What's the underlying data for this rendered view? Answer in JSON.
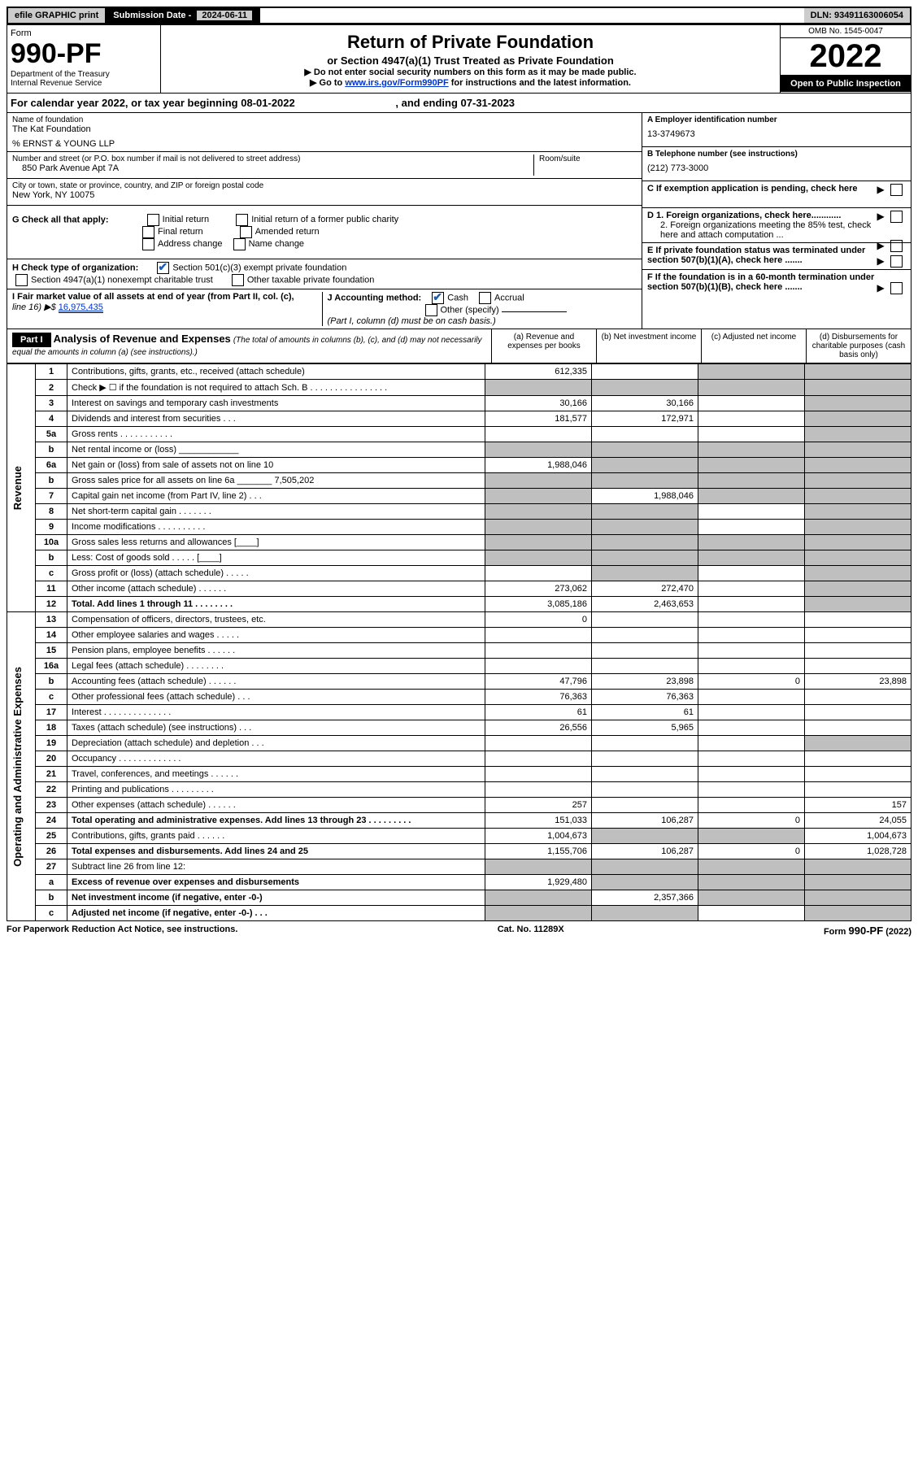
{
  "top": {
    "efile": "efile GRAPHIC print",
    "sub_label": "Submission Date - ",
    "sub_date": "2024-06-11",
    "dln_label": "DLN: ",
    "dln": "93491163006054"
  },
  "header": {
    "form_word": "Form",
    "form_number": "990-PF",
    "dept1": "Department of the Treasury",
    "dept2": "Internal Revenue Service",
    "title": "Return of Private Foundation",
    "subtitle": "or Section 4947(a)(1) Trust Treated as Private Foundation",
    "note1": "▶ Do not enter social security numbers on this form as it may be made public.",
    "note2_pre": "▶ Go to ",
    "note2_link": "www.irs.gov/Form990PF",
    "note2_post": " for instructions and the latest information.",
    "omb": "OMB No. 1545-0047",
    "year": "2022",
    "inspection": "Open to Public Inspection"
  },
  "cal": {
    "text_pre": "For calendar year 2022, or tax year beginning ",
    "begin": "08-01-2022",
    "text_mid": " , and ending ",
    "end": "07-31-2023"
  },
  "info": {
    "name_label": "Name of foundation",
    "name": "The Kat Foundation",
    "care_of": "% ERNST & YOUNG LLP",
    "addr_label": "Number and street (or P.O. box number if mail is not delivered to street address)",
    "addr": "850 Park Avenue Apt 7A",
    "room_label": "Room/suite",
    "room": "",
    "city_label": "City or town, state or province, country, and ZIP or foreign postal code",
    "city": "New York, NY  10075",
    "a_label": "A Employer identification number",
    "a_val": "13-3749673",
    "b_label": "B Telephone number (see instructions)",
    "b_val": "(212) 773-3000",
    "c_label": "C If exemption application is pending, check here",
    "d1_label": "D 1. Foreign organizations, check here............",
    "d2_label": "2. Foreign organizations meeting the 85% test, check here and attach computation ...",
    "e_label": "E  If private foundation status was terminated under section 507(b)(1)(A), check here .......",
    "f_label": "F  If the foundation is in a 60-month termination under section 507(b)(1)(B), check here .......",
    "g_label": "G Check all that apply:",
    "g_opts": [
      "Initial return",
      "Initial return of a former public charity",
      "Final return",
      "Amended return",
      "Address change",
      "Name change"
    ],
    "h_label": "H Check type of organization:",
    "h1": "Section 501(c)(3) exempt private foundation",
    "h2": "Section 4947(a)(1) nonexempt charitable trust",
    "h3": "Other taxable private foundation",
    "i_label": "I Fair market value of all assets at end of year (from Part II, col. (c), ",
    "i_line": "line 16) ▶$ ",
    "i_val": "16,975,435",
    "j_label": "J Accounting method:",
    "j_cash": "Cash",
    "j_accrual": "Accrual",
    "j_other": "Other (specify)",
    "j_note": "(Part I, column (d) must be on cash basis.)"
  },
  "part1": {
    "label": "Part I",
    "title": "Analysis of Revenue and Expenses",
    "note": " (The total of amounts in columns (b), (c), and (d) may not necessarily equal the amounts in column (a) (see instructions).)",
    "col_a": "(a)   Revenue and expenses per books",
    "col_b": "(b)   Net investment income",
    "col_c": "(c)   Adjusted net income",
    "col_d": "(d)   Disbursements for charitable purposes (cash basis only)"
  },
  "sections": {
    "revenue": "Revenue",
    "expenses": "Operating and Administrative Expenses"
  },
  "rows": [
    {
      "n": "1",
      "label": "Contributions, gifts, grants, etc., received (attach schedule)",
      "a": "612,335",
      "b": "",
      "c": "g",
      "d": "g"
    },
    {
      "n": "2",
      "label": "Check ▶ ☐ if the foundation is not required to attach Sch. B  .  .  .  .  .  .  .  .  .  .  .  .  .  .  .  .",
      "a": "g",
      "b": "g",
      "c": "g",
      "d": "g"
    },
    {
      "n": "3",
      "label": "Interest on savings and temporary cash investments",
      "a": "30,166",
      "b": "30,166",
      "c": "",
      "d": "g"
    },
    {
      "n": "4",
      "label": "Dividends and interest from securities   .   .   .",
      "a": "181,577",
      "b": "172,971",
      "c": "",
      "d": "g"
    },
    {
      "n": "5a",
      "label": "Gross rents   .   .   .   .   .   .   .   .   .   .   .",
      "a": "",
      "b": "",
      "c": "",
      "d": "g"
    },
    {
      "n": "b",
      "label": "Net rental income or (loss)  ____________",
      "a": "g",
      "b": "g",
      "c": "g",
      "d": "g"
    },
    {
      "n": "6a",
      "label": "Net gain or (loss) from sale of assets not on line 10",
      "a": "1,988,046",
      "b": "g",
      "c": "g",
      "d": "g"
    },
    {
      "n": "b",
      "label": "Gross sales price for all assets on line 6a _______ 7,505,202",
      "a": "g",
      "b": "g",
      "c": "g",
      "d": "g"
    },
    {
      "n": "7",
      "label": "Capital gain net income (from Part IV, line 2)   .   .   .",
      "a": "g",
      "b": "1,988,046",
      "c": "g",
      "d": "g"
    },
    {
      "n": "8",
      "label": "Net short-term capital gain   .   .   .   .   .   .   .",
      "a": "g",
      "b": "g",
      "c": "",
      "d": "g"
    },
    {
      "n": "9",
      "label": "Income modifications .   .   .   .   .   .   .   .   .   .",
      "a": "g",
      "b": "g",
      "c": "",
      "d": "g"
    },
    {
      "n": "10a",
      "label": "Gross sales less returns and allowances  [____]",
      "a": "g",
      "b": "g",
      "c": "g",
      "d": "g"
    },
    {
      "n": "b",
      "label": "Less: Cost of goods sold   .   .   .   .   .   [____]",
      "a": "g",
      "b": "g",
      "c": "g",
      "d": "g"
    },
    {
      "n": "c",
      "label": "Gross profit or (loss) (attach schedule)   .   .   .   .   .",
      "a": "",
      "b": "g",
      "c": "",
      "d": "g"
    },
    {
      "n": "11",
      "label": "Other income (attach schedule)   .   .   .   .   .   .",
      "a": "273,062",
      "b": "272,470",
      "c": "",
      "d": "g"
    },
    {
      "n": "12",
      "label": "Total. Add lines 1 through 11   .   .   .   .   .   .   .   .",
      "bold": true,
      "a": "3,085,186",
      "b": "2,463,653",
      "c": "",
      "d": "g"
    }
  ],
  "rows2": [
    {
      "n": "13",
      "label": "Compensation of officers, directors, trustees, etc.",
      "a": "0",
      "b": "",
      "c": "",
      "d": ""
    },
    {
      "n": "14",
      "label": "Other employee salaries and wages   .   .   .   .   .",
      "a": "",
      "b": "",
      "c": "",
      "d": ""
    },
    {
      "n": "15",
      "label": "Pension plans, employee benefits .   .   .   .   .   .",
      "a": "",
      "b": "",
      "c": "",
      "d": ""
    },
    {
      "n": "16a",
      "label": "Legal fees (attach schedule) .   .   .   .   .   .   .   .",
      "a": "",
      "b": "",
      "c": "",
      "d": ""
    },
    {
      "n": "b",
      "label": "Accounting fees (attach schedule) .   .   .   .   .   .",
      "a": "47,796",
      "b": "23,898",
      "c": "0",
      "d": "23,898"
    },
    {
      "n": "c",
      "label": "Other professional fees (attach schedule)   .   .   .",
      "a": "76,363",
      "b": "76,363",
      "c": "",
      "d": ""
    },
    {
      "n": "17",
      "label": "Interest .   .   .   .   .   .   .   .   .   .   .   .   .   .",
      "a": "61",
      "b": "61",
      "c": "",
      "d": ""
    },
    {
      "n": "18",
      "label": "Taxes (attach schedule) (see instructions)   .   .   .",
      "a": "26,556",
      "b": "5,965",
      "c": "",
      "d": ""
    },
    {
      "n": "19",
      "label": "Depreciation (attach schedule) and depletion   .   .   .",
      "a": "",
      "b": "",
      "c": "",
      "d": "g"
    },
    {
      "n": "20",
      "label": "Occupancy .   .   .   .   .   .   .   .   .   .   .   .   .",
      "a": "",
      "b": "",
      "c": "",
      "d": ""
    },
    {
      "n": "21",
      "label": "Travel, conferences, and meetings .   .   .   .   .   .",
      "a": "",
      "b": "",
      "c": "",
      "d": ""
    },
    {
      "n": "22",
      "label": "Printing and publications .   .   .   .   .   .   .   .   .",
      "a": "",
      "b": "",
      "c": "",
      "d": ""
    },
    {
      "n": "23",
      "label": "Other expenses (attach schedule) .   .   .   .   .   .",
      "a": "257",
      "b": "",
      "c": "",
      "d": "157"
    },
    {
      "n": "24",
      "label": "Total operating and administrative expenses. Add lines 13 through 23   .   .   .   .   .   .   .   .   .",
      "bold": true,
      "a": "151,033",
      "b": "106,287",
      "c": "0",
      "d": "24,055"
    },
    {
      "n": "25",
      "label": "Contributions, gifts, grants paid   .   .   .   .   .   .",
      "a": "1,004,673",
      "b": "g",
      "c": "g",
      "d": "1,004,673"
    },
    {
      "n": "26",
      "label": "Total expenses and disbursements. Add lines 24 and 25",
      "bold": true,
      "a": "1,155,706",
      "b": "106,287",
      "c": "0",
      "d": "1,028,728"
    },
    {
      "n": "27",
      "label": "Subtract line 26 from line 12:",
      "a": "g",
      "b": "g",
      "c": "g",
      "d": "g"
    },
    {
      "n": "a",
      "label": "Excess of revenue over expenses and disbursements",
      "bold": true,
      "a": "1,929,480",
      "b": "g",
      "c": "g",
      "d": "g"
    },
    {
      "n": "b",
      "label": "Net investment income (if negative, enter -0-)",
      "bold": true,
      "a": "g",
      "b": "2,357,366",
      "c": "g",
      "d": "g"
    },
    {
      "n": "c",
      "label": "Adjusted net income (if negative, enter -0-)   .   .   .",
      "bold": true,
      "a": "g",
      "b": "g",
      "c": "",
      "d": "g"
    }
  ],
  "footer": {
    "left": "For Paperwork Reduction Act Notice, see instructions.",
    "mid": "Cat. No. 11289X",
    "right": "Form 990-PF (2022)"
  }
}
